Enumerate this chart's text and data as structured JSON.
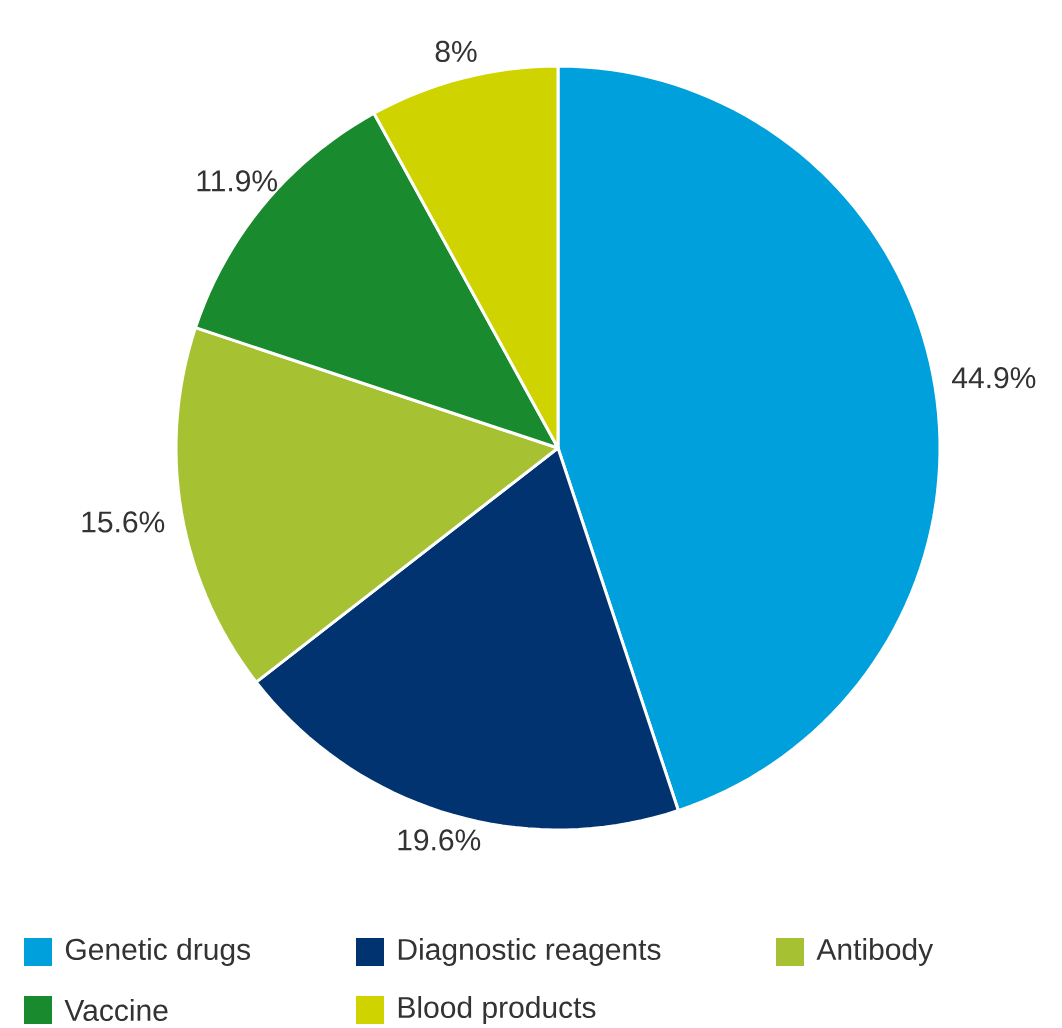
{
  "chart_data": {
    "type": "pie",
    "categories": [
      "Genetic drugs",
      "Diagnostic reagents",
      "Antibody",
      "Vaccine",
      "Blood products"
    ],
    "values": [
      44.9,
      19.6,
      15.6,
      11.9,
      8
    ],
    "value_labels": [
      "44.9%",
      "19.6%",
      "15.6%",
      "11.9%",
      "8%"
    ],
    "colors": [
      "#00a0dc",
      "#003370",
      "#a6c232",
      "#1a8a2e",
      "#cfd400"
    ],
    "legend": "bottom"
  }
}
